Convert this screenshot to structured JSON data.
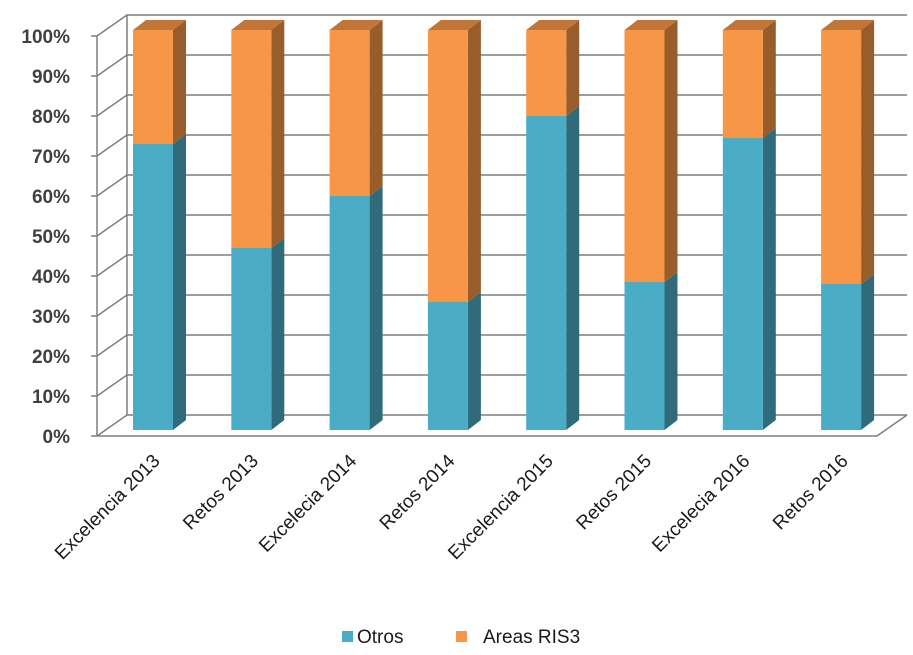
{
  "chart_data": {
    "type": "bar",
    "stacked": true,
    "percent": true,
    "three_d": true,
    "categories": [
      "Excelencia 2013",
      "Retos 2013",
      "Excelecia 2014",
      "Retos 2014",
      "Excelencia 2015",
      "Retos 2015",
      "Excelecia 2016",
      "Retos 2016"
    ],
    "series": [
      {
        "name": "Otros",
        "color": "#4BACC6",
        "values": [
          71.5,
          45.5,
          58.5,
          32,
          78.5,
          37,
          73,
          36.5
        ]
      },
      {
        "name": "Areas RIS3",
        "color": "#F79646",
        "values": [
          28.5,
          54.5,
          41.5,
          68,
          21.5,
          63,
          27,
          63.5
        ]
      }
    ],
    "y_ticks": [
      "0%",
      "10%",
      "20%",
      "30%",
      "40%",
      "50%",
      "60%",
      "70%",
      "80%",
      "90%",
      "100%"
    ],
    "ylim": [
      0,
      100
    ],
    "grid": true,
    "legend_position": "bottom"
  }
}
